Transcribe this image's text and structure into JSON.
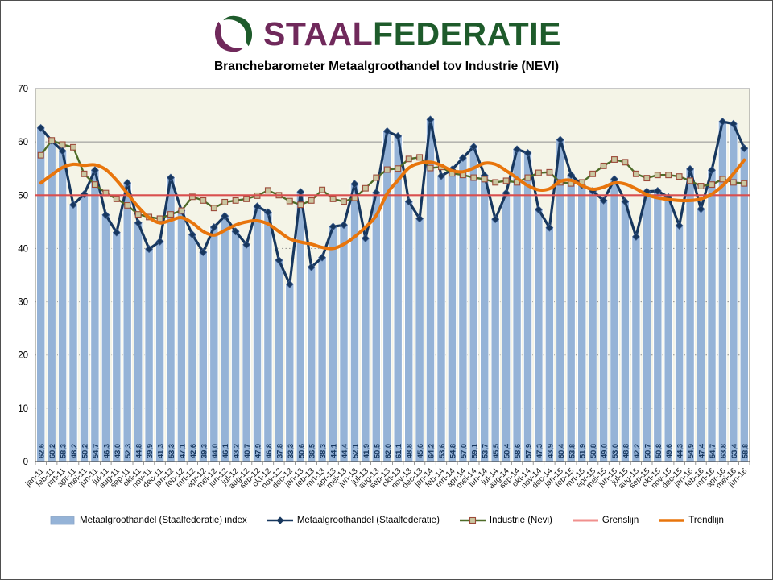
{
  "header": {
    "logo": {
      "word_primary": "STAAL",
      "word_secondary": "FEDERATIE",
      "purple": "#70295B",
      "green": "#1E5B2B"
    },
    "title": "Branchebarometer Metaalgroothandel tov Industrie (NEVI)"
  },
  "chart_data": {
    "type": "combo",
    "title": "Branchebarometer Metaalgroothandel tov Industrie (NEVI)",
    "xlabel": "",
    "ylabel": "",
    "ylim": [
      0,
      70
    ],
    "yticks": [
      0,
      10,
      20,
      30,
      40,
      50,
      60,
      70
    ],
    "plot_bg": "#F4F4E7",
    "grid_color": "#8f8f8f",
    "categories": [
      "jan-11",
      "feb-11",
      "mrt-11",
      "apr-11",
      "mei-11",
      "jun-11",
      "jul-11",
      "aug-11",
      "sep-11",
      "okt-11",
      "nov-11",
      "dec-11",
      "jan-12",
      "feb-12",
      "mrt-12",
      "apr-12",
      "mei-12",
      "jun-12",
      "jul-12",
      "aug-12",
      "sep-12",
      "okt-12",
      "nov-12",
      "dec-12",
      "jan-13",
      "feb-13",
      "mrt-13",
      "apr-13",
      "mei-13",
      "jun-13",
      "jul-13",
      "aug-13",
      "sep-13",
      "okt-13",
      "nov-13",
      "dec-13",
      "jan-14",
      "feb-14",
      "mrt-14",
      "apr-14",
      "mei-14",
      "jun-14",
      "jul-14",
      "aug-14",
      "sep-14",
      "okt-14",
      "nov-14",
      "dec-14",
      "jan-15",
      "feb-15",
      "mrt-15",
      "apr-15",
      "mei-15",
      "jun-15",
      "jul-15",
      "aug-15",
      "sep-15",
      "okt-15",
      "nov-15",
      "dec-15",
      "jan-16",
      "feb-16",
      "mrt-16",
      "apr-16",
      "mei-16",
      "jun-16"
    ],
    "series": [
      {
        "name": "Metaalgroothandel (Staalfederatie) index",
        "type": "bar",
        "color": "#95B3D7",
        "data_labels": true,
        "values": [
          62.6,
          60.2,
          58.3,
          48.2,
          50.2,
          54.7,
          46.3,
          43.0,
          52.3,
          44.8,
          39.9,
          41.3,
          53.3,
          47.1,
          42.6,
          39.3,
          44.0,
          46.1,
          43.2,
          40.7,
          47.9,
          46.8,
          37.8,
          33.3,
          50.6,
          36.5,
          38.3,
          44.1,
          44.4,
          52.1,
          41.9,
          50.5,
          62.0,
          61.1,
          48.8,
          45.6,
          64.2,
          53.6,
          54.8,
          57.0,
          59.1,
          53.7,
          45.5,
          50.4,
          58.6,
          57.9,
          47.3,
          43.9,
          60.4,
          53.8,
          51.9,
          50.8,
          49.0,
          53.0,
          48.8,
          42.2,
          50.7,
          50.8,
          49.6,
          44.3,
          54.9,
          47.4,
          54.7,
          63.8,
          63.4,
          58.8
        ]
      },
      {
        "name": "Metaalgroothandel (Staalfederatie)",
        "type": "line",
        "marker": "diamond",
        "color": "#17375E",
        "values": [
          62.6,
          60.2,
          58.3,
          48.2,
          50.2,
          54.7,
          46.3,
          43.0,
          52.3,
          44.8,
          39.9,
          41.3,
          53.3,
          47.1,
          42.6,
          39.3,
          44.0,
          46.1,
          43.2,
          40.7,
          47.9,
          46.8,
          37.8,
          33.3,
          50.6,
          36.5,
          38.3,
          44.1,
          44.4,
          52.1,
          41.9,
          50.5,
          62.0,
          61.1,
          48.8,
          45.6,
          64.2,
          53.6,
          54.8,
          57.0,
          59.1,
          53.7,
          45.5,
          50.4,
          58.6,
          57.9,
          47.3,
          43.9,
          60.4,
          53.8,
          51.9,
          50.8,
          49.0,
          53.0,
          48.8,
          42.2,
          50.7,
          50.8,
          49.6,
          44.3,
          54.9,
          47.4,
          54.7,
          63.8,
          63.4,
          58.8
        ]
      },
      {
        "name": "Industrie (Nevi)",
        "type": "line",
        "marker": "square",
        "color": "#4E6B28",
        "marker_fill": "#C9C6A0",
        "marker_stroke": "#9C4A39",
        "values": [
          57.5,
          60.3,
          59.5,
          59.0,
          54.0,
          52.0,
          50.4,
          49.3,
          48.1,
          46.4,
          45.9,
          45.6,
          46.4,
          47.1,
          49.7,
          49.0,
          47.6,
          48.7,
          49.0,
          49.3,
          49.9,
          50.9,
          50.0,
          48.9,
          48.2,
          49.0,
          51.0,
          49.3,
          48.8,
          49.5,
          51.3,
          53.3,
          54.8,
          55.0,
          56.8,
          57.1,
          55.1,
          55.3,
          54.1,
          53.8,
          53.3,
          53.0,
          52.4,
          52.7,
          52.4,
          53.3,
          54.2,
          54.3,
          52.4,
          52.2,
          52.4,
          54.0,
          55.5,
          56.7,
          56.2,
          54.0,
          53.2,
          53.8,
          53.8,
          53.5,
          52.7,
          51.7,
          52.0,
          53.0,
          52.4,
          52.2
        ]
      },
      {
        "name": "Grenslijn",
        "type": "hline",
        "color": "#D94F4F",
        "legend_color": "#F0908E",
        "value": 50
      },
      {
        "name": "Trendlijn",
        "type": "line-smooth",
        "color": "#E8750C",
        "values": [
          52.3,
          53.8,
          55.2,
          55.8,
          55.6,
          55.7,
          54.8,
          52.8,
          50.3,
          47.8,
          45.8,
          44.8,
          45.3,
          45.8,
          44.8,
          43.2,
          42.5,
          43.4,
          44.4,
          45.0,
          45.2,
          44.6,
          43.2,
          41.8,
          41.2,
          40.8,
          40.2,
          40.0,
          40.8,
          42.2,
          44.0,
          46.2,
          50.3,
          52.8,
          55.1,
          56.0,
          56.2,
          55.6,
          54.6,
          54.4,
          55.1,
          56.0,
          55.8,
          54.6,
          53.2,
          51.8,
          51.0,
          51.2,
          52.6,
          52.8,
          51.8,
          51.1,
          51.5,
          52.3,
          52.1,
          51.2,
          50.1,
          49.5,
          49.2,
          49.0,
          49.0,
          49.3,
          50.2,
          51.8,
          54.0,
          56.6
        ]
      }
    ]
  },
  "legend_note": "legend labels equal series names"
}
